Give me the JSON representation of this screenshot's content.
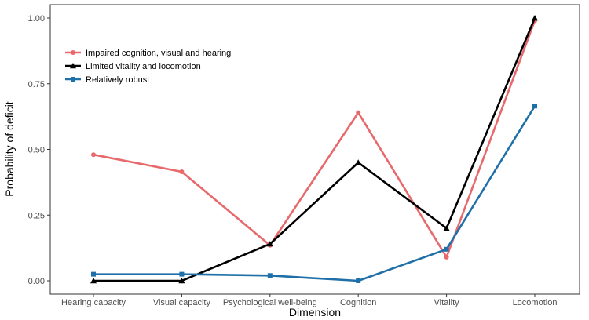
{
  "chart_data": {
    "type": "line",
    "xlabel": "Dimension",
    "ylabel": "Probability of deficit",
    "categories": [
      "Hearing capacity",
      "Visual capacity",
      "Psychological well-being",
      "Cognition",
      "Vitality",
      "Locomotion"
    ],
    "ylim": [
      0,
      1
    ],
    "yticks": [
      "0.00",
      "0.25",
      "0.50",
      "0.75",
      "1.00"
    ],
    "grid": false,
    "legend_position": "top-left",
    "series": [
      {
        "name": "Impaired cognition, visual and hearing",
        "color": "#E8696B",
        "marker": "circle",
        "values": [
          0.48,
          0.415,
          0.135,
          0.64,
          0.09,
          0.99
        ]
      },
      {
        "name": "Limited vitality and locomotion",
        "color": "#000000",
        "marker": "triangle",
        "values": [
          0.0,
          0.0,
          0.14,
          0.45,
          0.2,
          1.0
        ]
      },
      {
        "name": "Relatively robust",
        "color": "#1F6FA8",
        "marker": "square",
        "values": [
          0.025,
          0.025,
          0.02,
          0.0,
          0.12,
          0.665
        ]
      }
    ]
  }
}
